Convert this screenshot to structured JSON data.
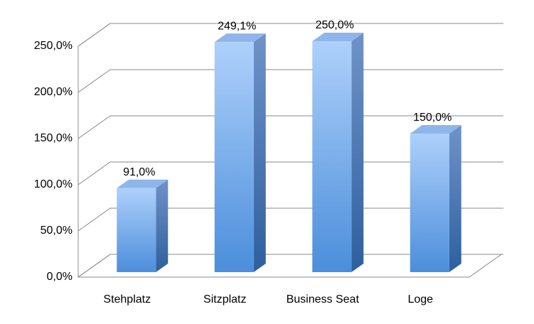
{
  "chart_data": {
    "type": "bar",
    "categories": [
      "Stehplatz",
      "Sitzplatz",
      "Business Seat",
      "Loge"
    ],
    "values": [
      91,
      249.1,
      250,
      150
    ],
    "value_labels": [
      "91,0%",
      "249,1%",
      "250,0%",
      "150,0%"
    ],
    "color": "#6fa6ea",
    "ylim": [
      0,
      250
    ],
    "yticks": [
      {
        "value": 0,
        "label": "0,0%"
      },
      {
        "value": 50,
        "label": "50,0%"
      },
      {
        "value": 100,
        "label": "100,0%"
      },
      {
        "value": 150,
        "label": "150,0%"
      },
      {
        "value": 200,
        "label": "200,0%"
      },
      {
        "value": 250,
        "label": "250,0%"
      }
    ],
    "grid": true
  }
}
